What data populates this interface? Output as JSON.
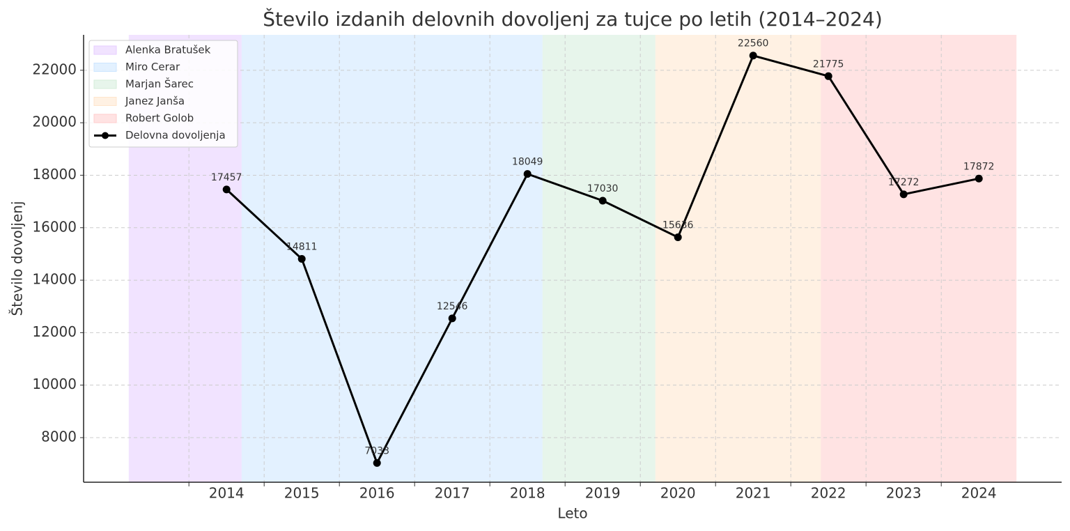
{
  "chart_data": {
    "type": "line",
    "title": "Število izdanih delovnih dovoljenj za tujce po letih (2014–2024)",
    "x_label": "Leto",
    "y_label": "Število dovoljenj",
    "x": [
      2014,
      2015,
      2016,
      2017,
      2018,
      2019,
      2020,
      2021,
      2022,
      2023,
      2024
    ],
    "series": [
      {
        "name": "Delovna dovoljenja",
        "color": "#000000",
        "values": [
          17457,
          14811,
          7033,
          12546,
          18049,
          17030,
          15636,
          22560,
          21775,
          17272,
          17872
        ]
      }
    ],
    "spans": [
      {
        "name": "Alenka Bratušek",
        "color": "#e6ccff",
        "start": 2012.7,
        "end": 2014.2
      },
      {
        "name": "Miro Cerar",
        "color": "#cce5ff",
        "start": 2014.2,
        "end": 2018.2
      },
      {
        "name": "Marjan Šarec",
        "color": "#d4edda",
        "start": 2018.2,
        "end": 2019.7
      },
      {
        "name": "Janez Janša",
        "color": "#ffe5cc",
        "start": 2019.7,
        "end": 2021.9
      },
      {
        "name": "Robert Golob",
        "color": "#ffcccc",
        "start": 2021.9,
        "end": 2024.5
      }
    ],
    "xlim": [
      2012.1,
      2025.1
    ],
    "xticks": [
      2014,
      2015,
      2016,
      2017,
      2018,
      2019,
      2020,
      2021,
      2022,
      2023,
      2024
    ],
    "ylim": [
      6300,
      23350
    ],
    "yticks": [
      8000,
      10000,
      12000,
      14000,
      16000,
      18000,
      20000,
      22000
    ],
    "grid": true,
    "legend": "upper left"
  }
}
